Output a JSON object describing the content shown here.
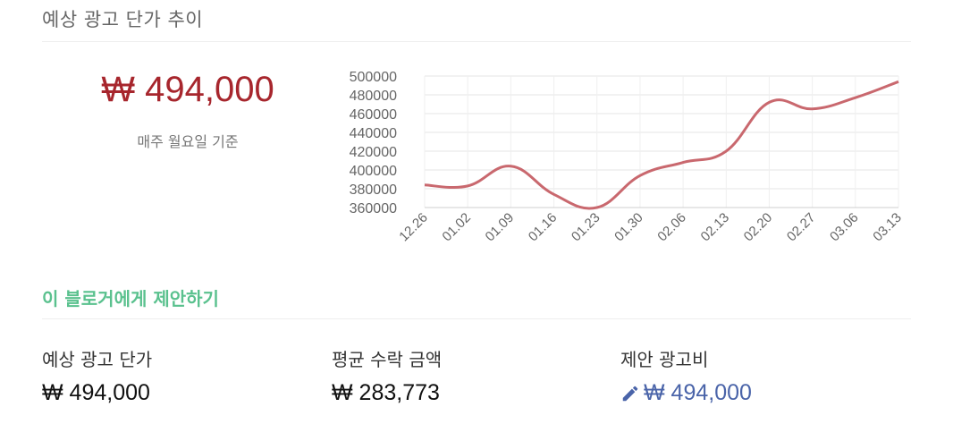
{
  "header": {
    "title": "예상 광고 단가 추이"
  },
  "summary": {
    "price": "₩ 494,000",
    "basis": "매주 월요일 기준"
  },
  "proposal": {
    "heading": "이 블로거에게 제안하기"
  },
  "stats": [
    {
      "label": "예상 광고 단가",
      "value": "₩ 494,000"
    },
    {
      "label": "평균 수락 금액",
      "value": "₩ 283,773"
    },
    {
      "label": "제안 광고비",
      "value": "₩ 494,000",
      "icon": "pencil-icon"
    }
  ],
  "colors": {
    "line": "#c9686e",
    "price": "#a7262d",
    "proposal": "#5ac18e",
    "link": "#4a64a9"
  },
  "chart_data": {
    "type": "line",
    "categories": [
      "12.26",
      "01.02",
      "01.09",
      "01.16",
      "01.23",
      "01.30",
      "02.06",
      "02.13",
      "02.20",
      "02.27",
      "03.06",
      "03.13"
    ],
    "series": [
      {
        "values": [
          384000,
          383000,
          404000,
          374000,
          360000,
          394000,
          408000,
          420000,
          472000,
          465000,
          477000,
          494000
        ]
      }
    ],
    "yticks": [
      360000,
      380000,
      400000,
      420000,
      440000,
      460000,
      480000,
      500000
    ],
    "ylim": [
      360000,
      500000
    ],
    "grid": true,
    "legend": "none",
    "xlabel": "",
    "ylabel": ""
  }
}
